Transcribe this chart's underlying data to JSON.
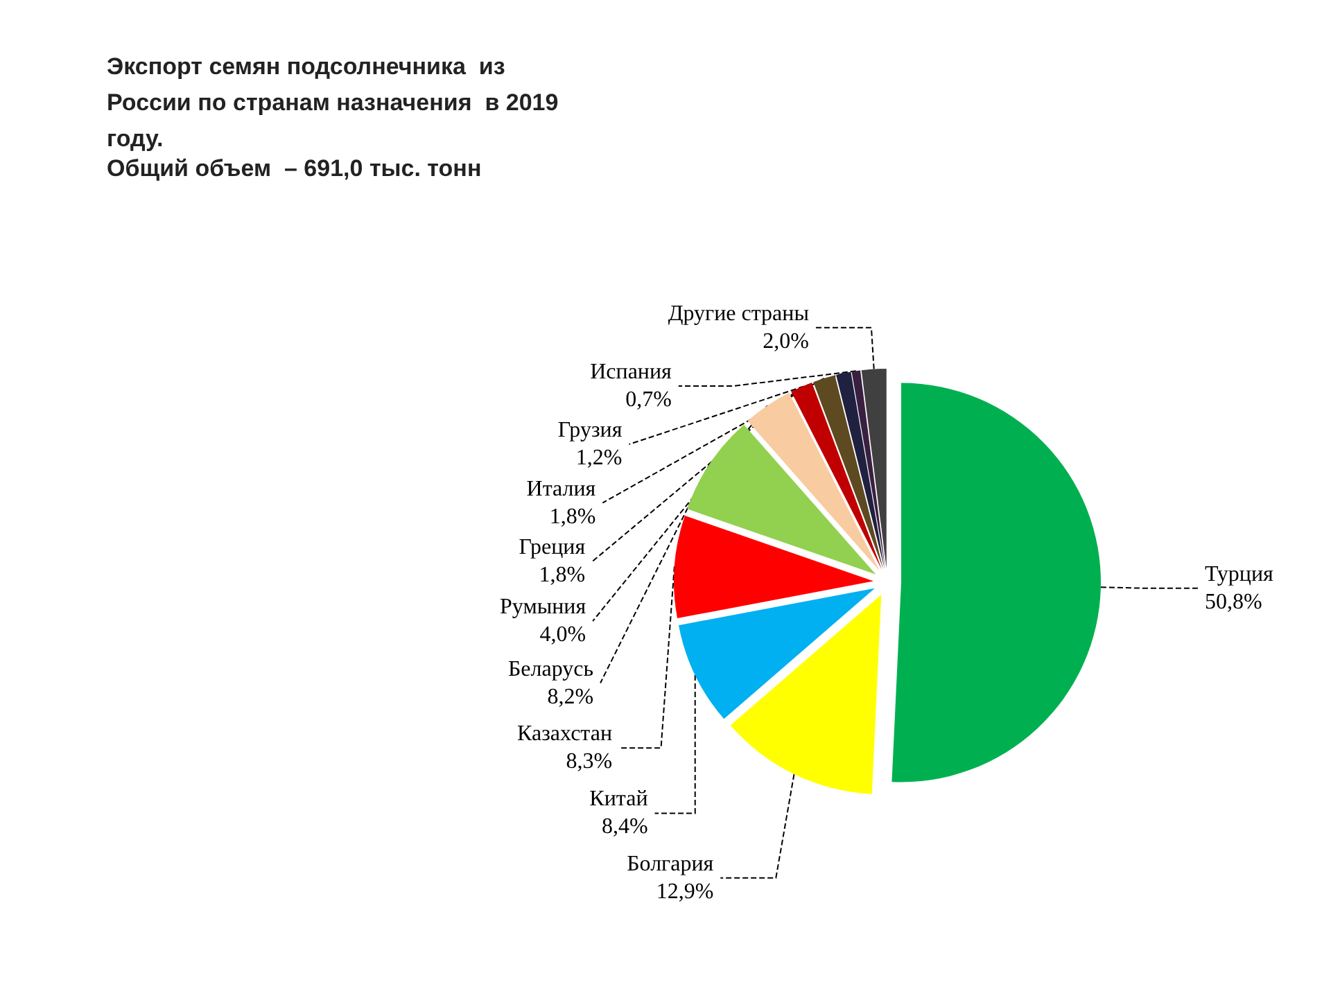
{
  "chart_data": {
    "type": "pie",
    "title": "Экспорт семян подсолнечника  из России по странам назначения  в 2019 году.",
    "subtitle": "Общий объем  – 691,0 тыс. тонн",
    "categories": [
      "Турция",
      "Болгария",
      "Китай",
      "Казахстан",
      "Беларусь",
      "Румыния",
      "Греция",
      "Италия",
      "Грузия",
      "Испания",
      "Другие страны"
    ],
    "values": [
      50.8,
      12.9,
      8.4,
      8.3,
      8.2,
      4.0,
      1.8,
      1.8,
      1.2,
      0.7,
      2.0
    ],
    "value_labels": [
      "50,8%",
      "12,9%",
      "8,4%",
      "8,3%",
      "8,2%",
      "4,0%",
      "1,8%",
      "1,8%",
      "1,2%",
      "0,7%",
      "2,0%"
    ],
    "colors": [
      "#00b050",
      "#ffff00",
      "#00b0f0",
      "#ff0000",
      "#92d050",
      "#f8cba0",
      "#c00000",
      "#5e4a20",
      "#202040",
      "#3a2040",
      "#404040"
    ],
    "legend": false
  }
}
